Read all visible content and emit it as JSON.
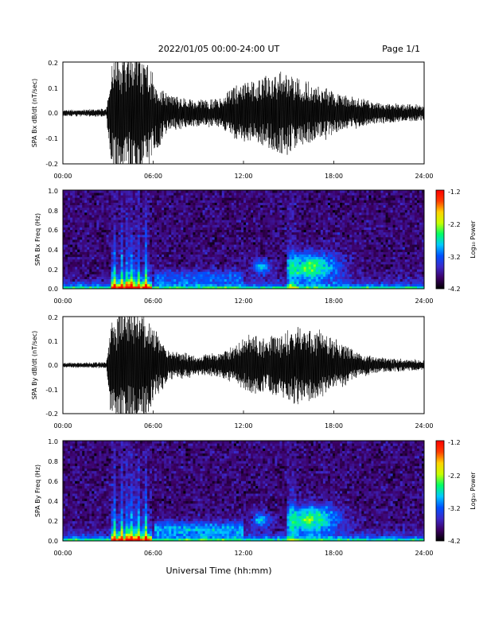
{
  "header": {
    "title": "2022/01/05  00:00-24:00 UT",
    "page": "Page 1/1"
  },
  "footer": {
    "xlabel": "Universal Time (hh:mm)"
  },
  "colorbar": {
    "label": "Log₁₀ Power",
    "ticks": [
      "-1.2",
      "-2.2",
      "-3.2",
      "-4.2"
    ],
    "range": [
      -4.2,
      -1.2
    ],
    "colormap": [
      "#000000",
      "#3c0064",
      "#3c28c8",
      "#0050ff",
      "#00c8ff",
      "#00ff64",
      "#c8ff00",
      "#ffd200",
      "#ff3c00",
      "#ff0000"
    ]
  },
  "chart_data": [
    {
      "type": "line",
      "ylabel": "SPA Bx dB/dt (nT/sec)",
      "xlim": [
        0,
        24
      ],
      "ylim": [
        -0.2,
        0.2
      ],
      "xticks": [
        "00:00",
        "06:00",
        "12:00",
        "18:00",
        "24:00"
      ],
      "yticks": [
        "0.2",
        "0.1",
        "0.0",
        "-0.1",
        "-0.2"
      ],
      "envelope_hours": [
        0,
        2.9,
        3.2,
        3.4,
        4.0,
        5.0,
        5.8,
        7.0,
        9.0,
        10.5,
        11.5,
        12.5,
        13.5,
        14.5,
        15.5,
        16.5,
        17.5,
        18.5,
        19.5,
        21,
        24
      ],
      "envelope_amplitude": [
        0.012,
        0.015,
        0.22,
        0.2,
        0.25,
        0.25,
        0.18,
        0.07,
        0.05,
        0.06,
        0.11,
        0.12,
        0.14,
        0.16,
        0.14,
        0.11,
        0.1,
        0.07,
        0.06,
        0.04,
        0.03
      ]
    },
    {
      "type": "heatmap",
      "ylabel": "SPA Bx Freq (Hz)",
      "xlim": [
        0,
        24
      ],
      "ylim": [
        0,
        1.0
      ],
      "xticks": [
        "00:00",
        "06:00",
        "12:00",
        "18:00",
        "24:00"
      ],
      "yticks": [
        "1.0",
        "0.8",
        "0.6",
        "0.4",
        "0.2",
        "0.0"
      ]
    },
    {
      "type": "line",
      "ylabel": "SPA By dB/dt (nT/sec)",
      "xlim": [
        0,
        24
      ],
      "ylim": [
        -0.2,
        0.2
      ],
      "xticks": [
        "00:00",
        "06:00",
        "12:00",
        "18:00",
        "24:00"
      ],
      "yticks": [
        "0.2",
        "0.1",
        "0.0",
        "-0.1",
        "-0.2"
      ],
      "envelope_hours": [
        0,
        2.9,
        3.2,
        3.4,
        4.0,
        5.0,
        5.8,
        7.0,
        9.0,
        10.5,
        11.5,
        12.5,
        13.5,
        14.5,
        15.5,
        16.5,
        17.5,
        18.5,
        19.5,
        21,
        24
      ],
      "envelope_amplitude": [
        0.01,
        0.012,
        0.22,
        0.2,
        0.25,
        0.25,
        0.18,
        0.06,
        0.04,
        0.05,
        0.08,
        0.13,
        0.1,
        0.13,
        0.16,
        0.15,
        0.12,
        0.09,
        0.05,
        0.03,
        0.02
      ]
    },
    {
      "type": "heatmap",
      "ylabel": "SPA By Freq (Hz)",
      "xlim": [
        0,
        24
      ],
      "ylim": [
        0,
        1.0
      ],
      "xticks": [
        "00:00",
        "06:00",
        "12:00",
        "18:00",
        "24:00"
      ],
      "yticks": [
        "1.0",
        "0.8",
        "0.6",
        "0.4",
        "0.2",
        "0.0"
      ]
    }
  ]
}
